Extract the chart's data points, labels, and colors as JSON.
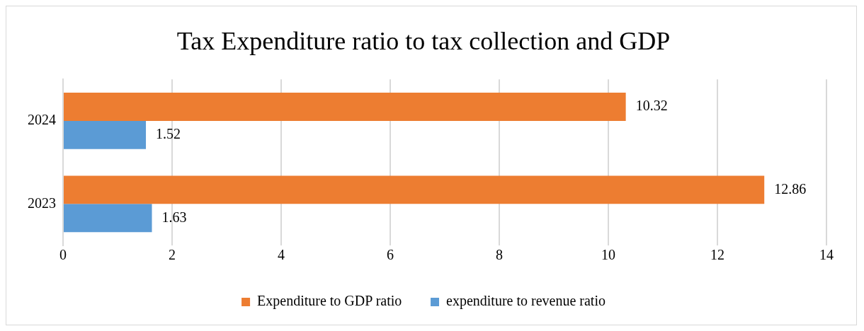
{
  "chart_data": {
    "type": "bar",
    "orientation": "horizontal",
    "title": "Tax Expenditure ratio to tax collection and GDP",
    "categories": [
      "2024",
      "2023"
    ],
    "series": [
      {
        "name": "Expenditure to GDP ratio",
        "color": "#ed7d31",
        "values": [
          10.32,
          12.86
        ]
      },
      {
        "name": "expenditure to revenue ratio",
        "color": "#5b9bd5",
        "values": [
          1.52,
          1.63
        ]
      }
    ],
    "xlim": [
      0,
      14
    ],
    "xticks": [
      0,
      2,
      4,
      6,
      8,
      10,
      12,
      14
    ],
    "grid": "x",
    "legend": "bottom",
    "data_labels": true
  }
}
